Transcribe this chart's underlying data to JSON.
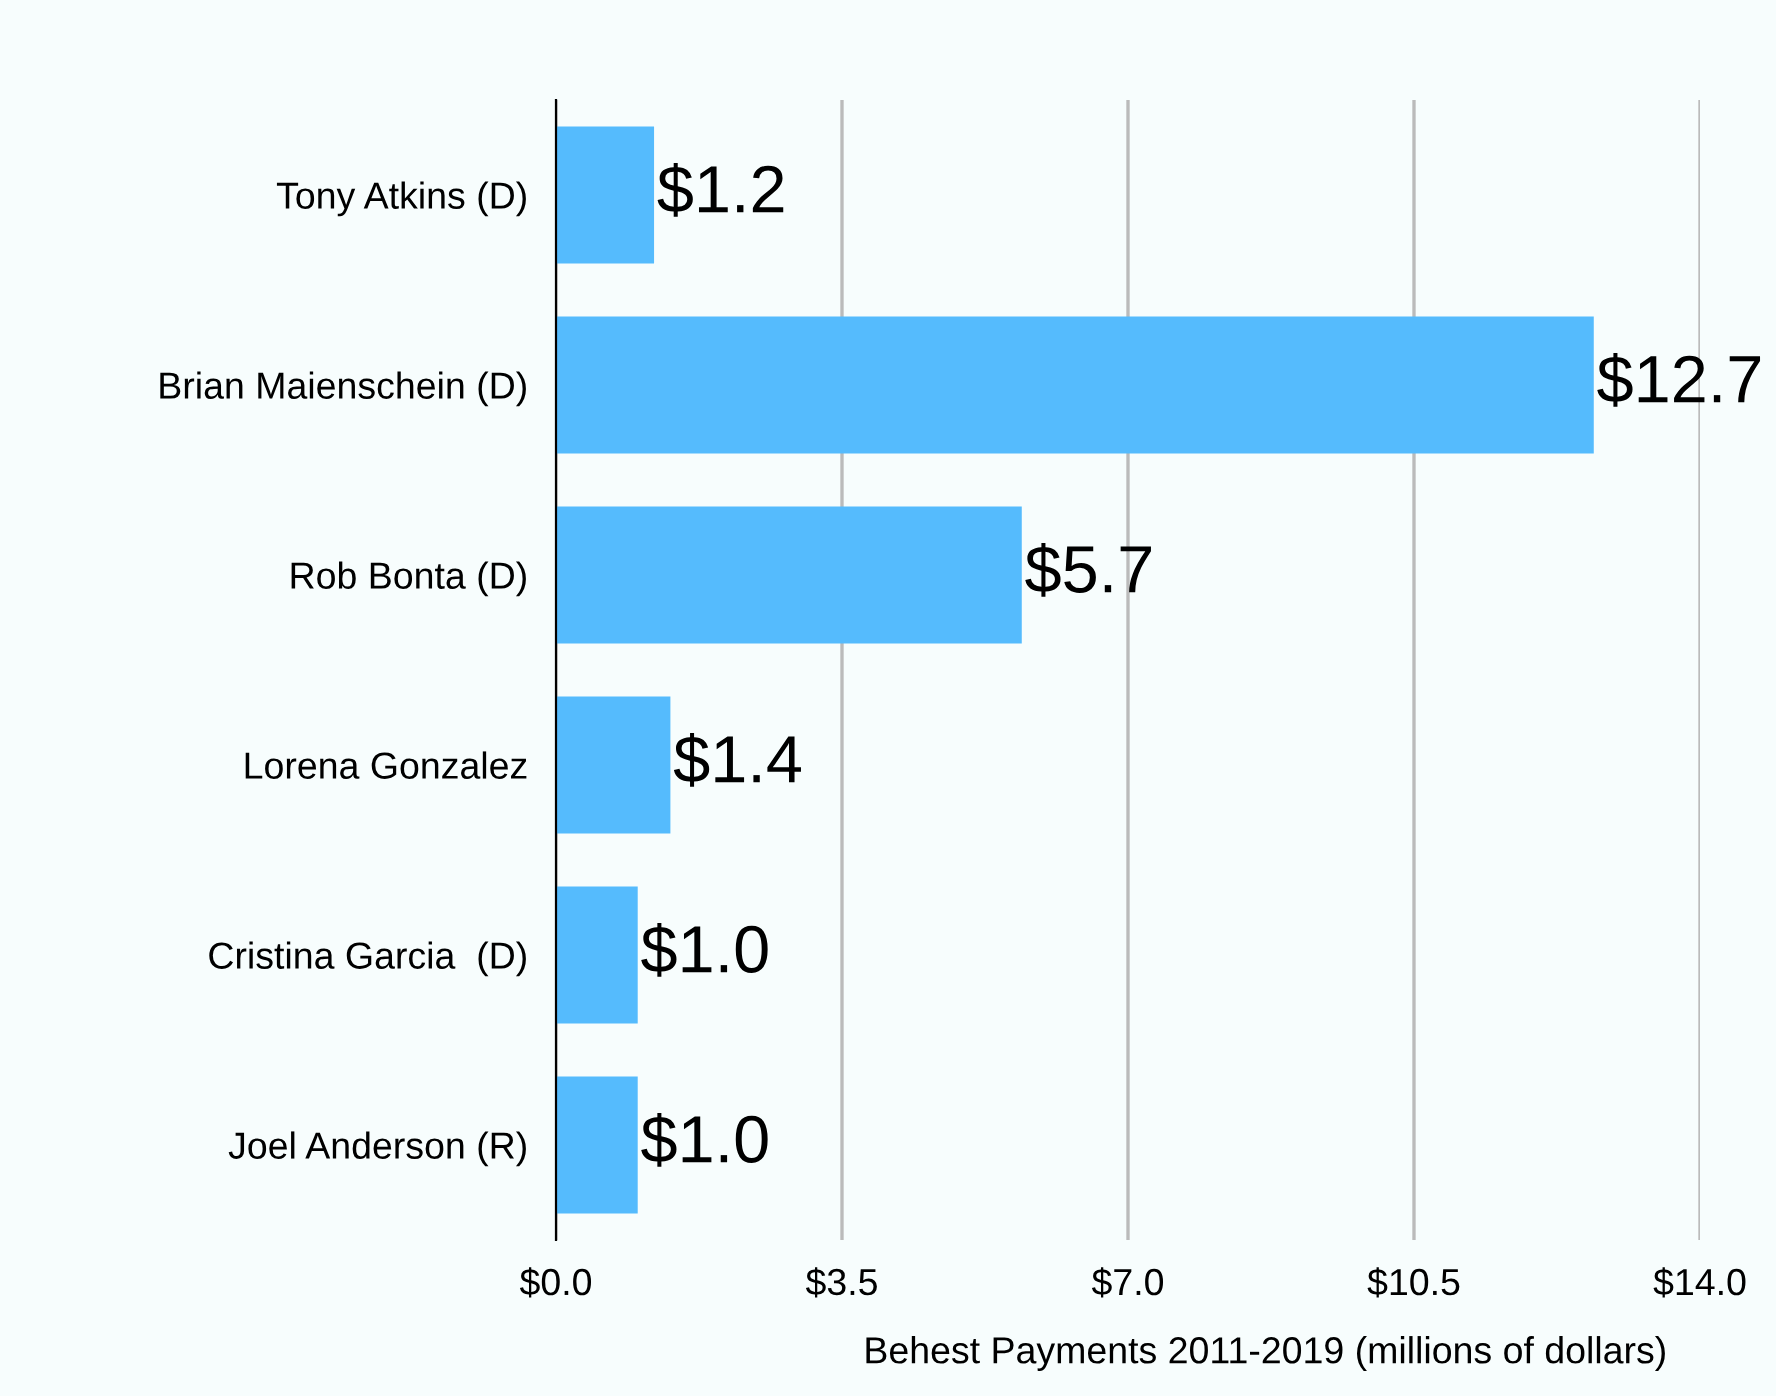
{
  "chart_data": {
    "type": "bar",
    "orientation": "horizontal",
    "xlabel": "Behest Payments 2011-2019 (millions of dollars)",
    "categories": [
      "Tony Atkins (D)",
      "Brian Maienschein (D)",
      "Rob Bonta (D)",
      "Lorena Gonzalez",
      "Cristina Garcia  (D)",
      "Joel Anderson (R)"
    ],
    "values": [
      1.2,
      12.7,
      5.7,
      1.4,
      1.0,
      1.0
    ],
    "value_labels": [
      "$1.2",
      "$12.7",
      "$5.7",
      "$1.4",
      "$1.0",
      "$1.0"
    ],
    "color": "#55bbfd",
    "xlim": [
      0,
      14
    ],
    "xticks": [
      {
        "value": 0,
        "label": "$0.0"
      },
      {
        "value": 3.5,
        "label": "$3.5"
      },
      {
        "value": 7,
        "label": "$7.0"
      },
      {
        "value": 10.5,
        "label": "$10.5"
      },
      {
        "value": 14,
        "label": "$14.0"
      }
    ],
    "grid": "x"
  }
}
